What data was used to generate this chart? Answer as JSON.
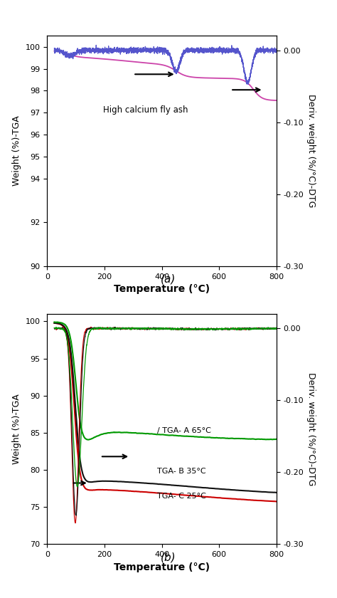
{
  "panel_a": {
    "tga_color": "#cc44aa",
    "dtg_color": "#5555cc",
    "annotation": "High calcium fly ash",
    "ylim_left": [
      90,
      100.5
    ],
    "ylim_right": [
      -0.3,
      0.02
    ],
    "xlim": [
      0,
      800
    ],
    "yticks_left": [
      90,
      92,
      94,
      95,
      96,
      97,
      98,
      99,
      100
    ],
    "yticks_right": [
      0.0,
      -0.1,
      -0.2,
      -0.3
    ],
    "ylabel_left": "Weight (%)-TGA",
    "ylabel_right": "Deriv. weight (%/°C)-DTG",
    "xlabel": "Temperature (°C)"
  },
  "panel_b": {
    "colors": {
      "tga_A": "#009900",
      "tga_B": "#111111",
      "tga_C": "#cc0000",
      "dtg_A": "#009900",
      "dtg_B": "#111111",
      "dtg_C": "#cc0000"
    },
    "labels": {
      "tga_A": "/ TGA- A 65°C",
      "tga_B": "TGA- B 35°C",
      "tga_C": "TGA- C 25°C"
    },
    "ylim_left": [
      70,
      101
    ],
    "ylim_right": [
      -0.3,
      0.02
    ],
    "xlim": [
      0,
      800
    ],
    "yticks_left": [
      70,
      75,
      80,
      85,
      90,
      95,
      100
    ],
    "yticks_right": [
      0.0,
      -0.1,
      -0.2,
      -0.3
    ],
    "ylabel_left": "Weight (%)-TGA",
    "ylabel_right": "Deriv. weight (%/°C)-DTG",
    "xlabel": "Temperature (°C)"
  },
  "label_a": "(a)",
  "label_b": "(b)"
}
